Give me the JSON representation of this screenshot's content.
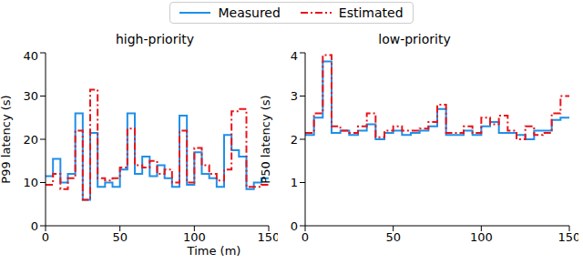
{
  "chart_data": [
    {
      "type": "line",
      "title": "high-priority",
      "x_label": "Time (m)",
      "y_label": "P99 latency (s)",
      "legend": "top",
      "line_shape": "step",
      "x": [
        0,
        5,
        10,
        15,
        20,
        25,
        30,
        35,
        40,
        45,
        50,
        55,
        60,
        65,
        70,
        75,
        80,
        85,
        90,
        95,
        100,
        105,
        110,
        115,
        120,
        125,
        130,
        135,
        140,
        145,
        150
      ],
      "xlim": [
        0,
        150
      ],
      "xticks": [
        0,
        50,
        100,
        150
      ],
      "ylim": [
        0,
        40
      ],
      "yticks": [
        0,
        10,
        20,
        30,
        40
      ],
      "grid": false,
      "series": [
        {
          "name": "Measured",
          "color": "#1f8fe8",
          "line_style": "solid",
          "values": [
            11.5,
            15.5,
            10,
            12,
            26,
            6,
            21.5,
            9,
            10,
            9,
            13,
            26,
            12,
            16,
            11.5,
            14,
            11,
            9,
            25.5,
            9.5,
            17,
            12,
            11,
            9,
            21,
            17.5,
            16,
            8.5,
            10,
            11,
            11
          ]
        },
        {
          "name": "Estimated",
          "color": "#e8141c",
          "line_style": "dashdot",
          "values": [
            9.5,
            12,
            8.5,
            11,
            22,
            6,
            31.5,
            11,
            10.5,
            11,
            13.5,
            22.5,
            14,
            13.5,
            15,
            12,
            13,
            10,
            22,
            10,
            18,
            14,
            12,
            10.5,
            13,
            26.5,
            27,
            9,
            9,
            9.5,
            9.5
          ]
        }
      ]
    },
    {
      "type": "line",
      "title": "low-priority",
      "y_label": "P50 latency (s)",
      "line_shape": "step",
      "x": [
        0,
        5,
        10,
        15,
        20,
        25,
        30,
        35,
        40,
        45,
        50,
        55,
        60,
        65,
        70,
        75,
        80,
        85,
        90,
        95,
        100,
        105,
        110,
        115,
        120,
        125,
        130,
        135,
        140,
        145,
        150
      ],
      "xlim": [
        0,
        150
      ],
      "xticks": [
        0,
        50,
        100,
        150
      ],
      "ylim": [
        0,
        4
      ],
      "yticks": [
        0,
        1,
        2,
        3,
        4
      ],
      "grid": false,
      "series": [
        {
          "name": "Measured",
          "color": "#1f8fe8",
          "line_style": "solid",
          "values": [
            2.1,
            2.5,
            3.8,
            2.15,
            2.2,
            2.1,
            2.2,
            2.35,
            2.0,
            2.15,
            2.2,
            2.1,
            2.15,
            2.2,
            2.3,
            2.7,
            2.1,
            2.1,
            2.2,
            2.1,
            2.3,
            2.4,
            2.15,
            2.15,
            2.1,
            2.0,
            2.2,
            2.2,
            2.45,
            2.5,
            2.5
          ]
        },
        {
          "name": "Estimated",
          "color": "#e8141c",
          "line_style": "dashdot",
          "values": [
            2.15,
            2.6,
            3.95,
            2.3,
            2.2,
            2.15,
            2.3,
            2.6,
            2.05,
            2.2,
            2.3,
            2.2,
            2.2,
            2.25,
            2.4,
            2.8,
            2.15,
            2.15,
            2.3,
            2.15,
            2.5,
            2.35,
            2.55,
            2.2,
            2.0,
            2.3,
            2.1,
            2.15,
            2.6,
            3.0,
            3.0
          ]
        }
      ]
    }
  ]
}
